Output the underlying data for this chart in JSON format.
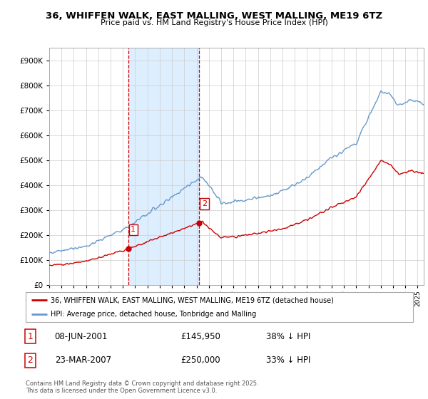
{
  "title": "36, WHIFFEN WALK, EAST MALLING, WEST MALLING, ME19 6TZ",
  "subtitle": "Price paid vs. HM Land Registry's House Price Index (HPI)",
  "footer": "Contains HM Land Registry data © Crown copyright and database right 2025.\nThis data is licensed under the Open Government Licence v3.0.",
  "legend_line1": "36, WHIFFEN WALK, EAST MALLING, WEST MALLING, ME19 6TZ (detached house)",
  "legend_line2": "HPI: Average price, detached house, Tonbridge and Malling",
  "transaction1": {
    "num": "1",
    "date": "08-JUN-2001",
    "price": "£145,950",
    "change": "38% ↓ HPI"
  },
  "transaction2": {
    "num": "2",
    "date": "23-MAR-2007",
    "price": "£250,000",
    "change": "33% ↓ HPI"
  },
  "sale_color": "#cc0000",
  "hpi_color": "#6699cc",
  "highlight_color": "#ddeeff",
  "vline_color": "#cc0000",
  "ylim": [
    0,
    950000
  ],
  "yticks": [
    0,
    100000,
    200000,
    300000,
    400000,
    500000,
    600000,
    700000,
    800000,
    900000
  ],
  "sale1_x": 2001.44,
  "sale1_y": 145950,
  "sale2_x": 2007.22,
  "sale2_y": 250000,
  "xmin": 1995,
  "xmax": 2025.5
}
